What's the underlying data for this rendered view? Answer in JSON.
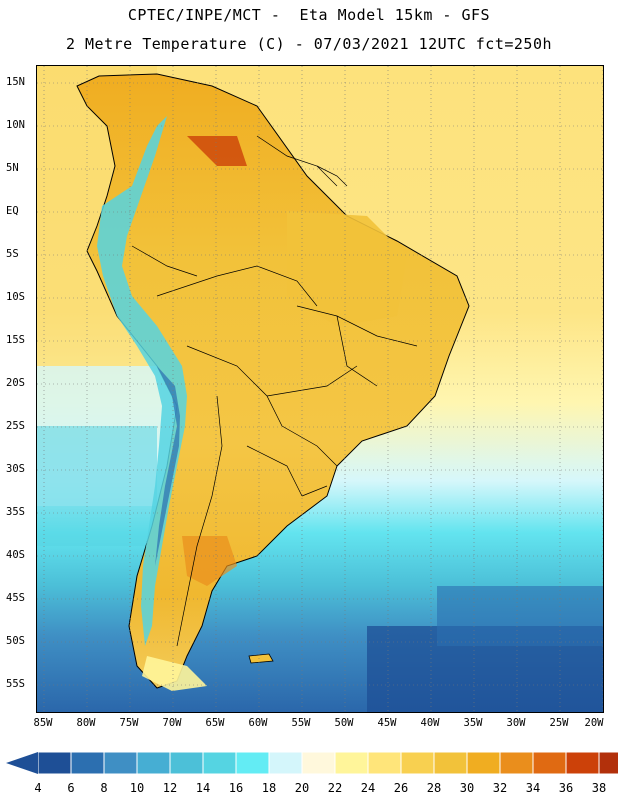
{
  "header": {
    "title_line1": "CPTEC/INPE/MCT -  Eta Model 15km - GFS",
    "title_line2": "2 Metre Temperature (C) - 07/03/2021 12UTC fct=250h"
  },
  "map": {
    "lat_labels": [
      "15N",
      "10N",
      "5N",
      "EQ",
      "5S",
      "10S",
      "15S",
      "20S",
      "25S",
      "30S",
      "35S",
      "40S",
      "45S",
      "50S",
      "55S"
    ],
    "lon_labels": [
      "85W",
      "80W",
      "75W",
      "70W",
      "65W",
      "60W",
      "55W",
      "50W",
      "45W",
      "40W",
      "35W",
      "30W",
      "25W",
      "20W"
    ],
    "grid": "dotted"
  },
  "colorbar": {
    "labels": [
      "4",
      "6",
      "8",
      "10",
      "12",
      "14",
      "16",
      "18",
      "20",
      "22",
      "24",
      "26",
      "28",
      "30",
      "32",
      "34",
      "36",
      "38"
    ],
    "colors": [
      "#1e4f96",
      "#2c6fb0",
      "#3f8fc4",
      "#46aed3",
      "#4cc0d8",
      "#55d4e2",
      "#63ecf4",
      "#d4f6fb",
      "#fff8dc",
      "#fff59a",
      "#ffe57a",
      "#f8d050",
      "#f2c23a",
      "#f0ad21",
      "#ea8e1c",
      "#e06a12",
      "#cc4109",
      "#b2300b"
    ]
  }
}
